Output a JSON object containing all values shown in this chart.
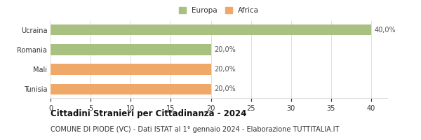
{
  "categories": [
    "Ucraina",
    "Romania",
    "Mali",
    "Tunisia"
  ],
  "values": [
    40,
    20,
    20,
    20
  ],
  "labels": [
    "40,0%",
    "20,0%",
    "20,0%",
    "20,0%"
  ],
  "bar_colors": [
    "#a8c080",
    "#a8c080",
    "#f0a868",
    "#f0a868"
  ],
  "legend_items": [
    {
      "label": "Europa",
      "color": "#a8c080"
    },
    {
      "label": "Africa",
      "color": "#f0a868"
    }
  ],
  "xlim": [
    0,
    42
  ],
  "xticks": [
    0,
    5,
    10,
    15,
    20,
    25,
    30,
    35,
    40
  ],
  "title": "Cittadini Stranieri per Cittadinanza - 2024",
  "subtitle": "COMUNE DI PIODE (VC) - Dati ISTAT al 1° gennaio 2024 - Elaborazione TUTTITALIA.IT",
  "background_color": "#ffffff",
  "grid_color": "#dddddd",
  "title_fontsize": 8.5,
  "subtitle_fontsize": 7.0,
  "label_fontsize": 7.0,
  "tick_fontsize": 7.0
}
